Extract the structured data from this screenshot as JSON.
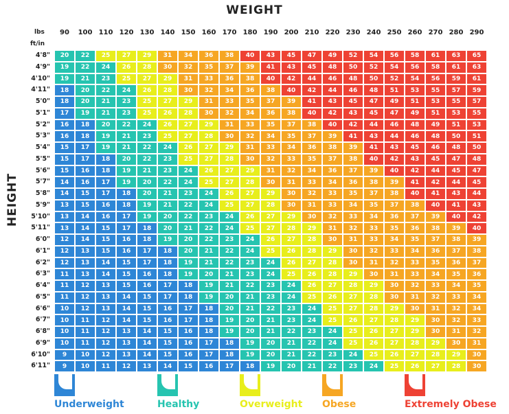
{
  "chart_data": {
    "type": "heatmap",
    "title": "WEIGHT",
    "ylabel": "HEIGHT",
    "x_unit": "lbs",
    "y_unit": "ft/in",
    "weights": [
      "90",
      "100",
      "110",
      "120",
      "130",
      "140",
      "150",
      "160",
      "170",
      "180",
      "190",
      "200",
      "210",
      "220",
      "230",
      "240",
      "250",
      "260",
      "270",
      "280",
      "290"
    ],
    "heights": [
      "4'8\"",
      "4'9\"",
      "4'10\"",
      "4'11\"",
      "5'0\"",
      "5'1\"",
      "5'2\"",
      "5'3\"",
      "5'4\"",
      "5'5\"",
      "5'6\"",
      "5'7\"",
      "5'8\"",
      "5'9\"",
      "5'10\"",
      "5'11\"",
      "6'0\"",
      "6'1\"",
      "6'2\"",
      "6'3\"",
      "6'4\"",
      "6'5\"",
      "6'6\"",
      "6'7\"",
      "6'8\"",
      "6'9\"",
      "6'10\"",
      "6'11\""
    ],
    "values": [
      [
        20,
        22,
        25,
        27,
        29,
        31,
        34,
        36,
        38,
        40,
        43,
        45,
        47,
        49,
        52,
        54,
        56,
        58,
        61,
        63,
        65
      ],
      [
        19,
        22,
        24,
        26,
        28,
        30,
        32,
        35,
        37,
        39,
        41,
        43,
        45,
        48,
        50,
        52,
        54,
        56,
        58,
        61,
        63
      ],
      [
        19,
        21,
        23,
        25,
        27,
        29,
        31,
        33,
        36,
        38,
        40,
        42,
        44,
        46,
        48,
        50,
        52,
        54,
        56,
        59,
        61
      ],
      [
        18,
        20,
        22,
        24,
        26,
        28,
        30,
        32,
        34,
        36,
        38,
        40,
        42,
        44,
        46,
        48,
        51,
        53,
        55,
        57,
        59
      ],
      [
        18,
        20,
        21,
        23,
        25,
        27,
        29,
        31,
        33,
        35,
        37,
        39,
        41,
        43,
        45,
        47,
        49,
        51,
        53,
        55,
        57
      ],
      [
        17,
        19,
        21,
        23,
        25,
        26,
        28,
        30,
        32,
        34,
        36,
        38,
        40,
        42,
        43,
        45,
        47,
        49,
        51,
        53,
        55
      ],
      [
        16,
        18,
        20,
        22,
        24,
        26,
        27,
        29,
        31,
        33,
        35,
        37,
        38,
        40,
        42,
        44,
        46,
        48,
        49,
        51,
        53
      ],
      [
        16,
        18,
        19,
        21,
        23,
        25,
        27,
        28,
        30,
        32,
        34,
        35,
        37,
        39,
        41,
        43,
        44,
        46,
        48,
        50,
        51
      ],
      [
        15,
        17,
        19,
        21,
        22,
        24,
        26,
        27,
        29,
        31,
        33,
        34,
        36,
        38,
        39,
        41,
        43,
        45,
        46,
        48,
        50
      ],
      [
        15,
        17,
        18,
        20,
        22,
        23,
        25,
        27,
        28,
        30,
        32,
        33,
        35,
        37,
        38,
        40,
        42,
        43,
        45,
        47,
        48
      ],
      [
        15,
        16,
        18,
        19,
        21,
        23,
        24,
        26,
        27,
        29,
        31,
        32,
        34,
        36,
        37,
        39,
        40,
        42,
        44,
        45,
        47
      ],
      [
        14,
        16,
        17,
        19,
        20,
        22,
        24,
        25,
        27,
        28,
        30,
        31,
        33,
        34,
        36,
        38,
        39,
        41,
        42,
        44,
        45
      ],
      [
        14,
        15,
        17,
        18,
        20,
        21,
        23,
        24,
        26,
        27,
        29,
        30,
        32,
        33,
        35,
        37,
        38,
        40,
        41,
        43,
        44
      ],
      [
        13,
        15,
        16,
        18,
        19,
        21,
        22,
        24,
        25,
        27,
        28,
        30,
        31,
        33,
        34,
        35,
        37,
        38,
        40,
        41,
        43
      ],
      [
        13,
        14,
        16,
        17,
        19,
        20,
        22,
        23,
        24,
        26,
        27,
        29,
        30,
        32,
        33,
        34,
        36,
        37,
        39,
        40,
        42
      ],
      [
        13,
        14,
        15,
        17,
        18,
        20,
        21,
        22,
        24,
        25,
        27,
        28,
        29,
        31,
        32,
        33,
        35,
        36,
        38,
        39,
        40
      ],
      [
        12,
        14,
        15,
        16,
        18,
        19,
        20,
        22,
        23,
        24,
        26,
        27,
        28,
        30,
        31,
        33,
        34,
        35,
        37,
        38,
        39
      ],
      [
        12,
        13,
        15,
        16,
        17,
        18,
        20,
        21,
        22,
        24,
        25,
        26,
        28,
        29,
        30,
        32,
        33,
        34,
        36,
        37,
        38
      ],
      [
        12,
        13,
        14,
        15,
        17,
        18,
        19,
        21,
        22,
        23,
        24,
        26,
        27,
        28,
        30,
        31,
        32,
        33,
        35,
        36,
        37
      ],
      [
        11,
        13,
        14,
        15,
        16,
        18,
        19,
        20,
        21,
        23,
        24,
        25,
        26,
        28,
        29,
        30,
        31,
        33,
        34,
        35,
        36
      ],
      [
        11,
        12,
        13,
        15,
        16,
        17,
        18,
        19,
        21,
        22,
        23,
        24,
        26,
        27,
        28,
        29,
        30,
        32,
        33,
        34,
        35
      ],
      [
        11,
        12,
        13,
        14,
        15,
        17,
        18,
        19,
        20,
        21,
        23,
        24,
        25,
        26,
        27,
        28,
        30,
        31,
        32,
        33,
        34
      ],
      [
        10,
        12,
        13,
        14,
        15,
        16,
        17,
        18,
        20,
        21,
        22,
        23,
        24,
        25,
        27,
        28,
        29,
        30,
        31,
        32,
        34
      ],
      [
        10,
        11,
        12,
        14,
        15,
        16,
        17,
        18,
        19,
        20,
        21,
        23,
        24,
        25,
        26,
        27,
        28,
        29,
        30,
        32,
        33
      ],
      [
        10,
        11,
        12,
        13,
        14,
        15,
        16,
        18,
        19,
        20,
        21,
        22,
        23,
        24,
        25,
        26,
        27,
        29,
        30,
        31,
        32
      ],
      [
        10,
        11,
        12,
        13,
        14,
        15,
        16,
        17,
        18,
        19,
        20,
        21,
        22,
        24,
        25,
        26,
        27,
        28,
        29,
        30,
        31
      ],
      [
        9,
        10,
        12,
        13,
        14,
        15,
        16,
        17,
        18,
        19,
        20,
        21,
        22,
        23,
        24,
        25,
        26,
        27,
        28,
        29,
        30
      ],
      [
        9,
        10,
        11,
        12,
        13,
        14,
        15,
        16,
        17,
        18,
        19,
        20,
        21,
        22,
        23,
        24,
        25,
        26,
        27,
        28,
        30
      ]
    ],
    "categories": [
      {
        "label": "Underweight",
        "max": 18,
        "color": "#2e86d6"
      },
      {
        "label": "Healthy",
        "max": 24,
        "color": "#26c4b0"
      },
      {
        "label": "Overweight",
        "max": 29,
        "color": "#e8ee1c"
      },
      {
        "label": "Obese",
        "max": 39,
        "color": "#f6a623"
      },
      {
        "label": "Extremely Obese",
        "max": 999,
        "color": "#ee4234"
      }
    ]
  }
}
